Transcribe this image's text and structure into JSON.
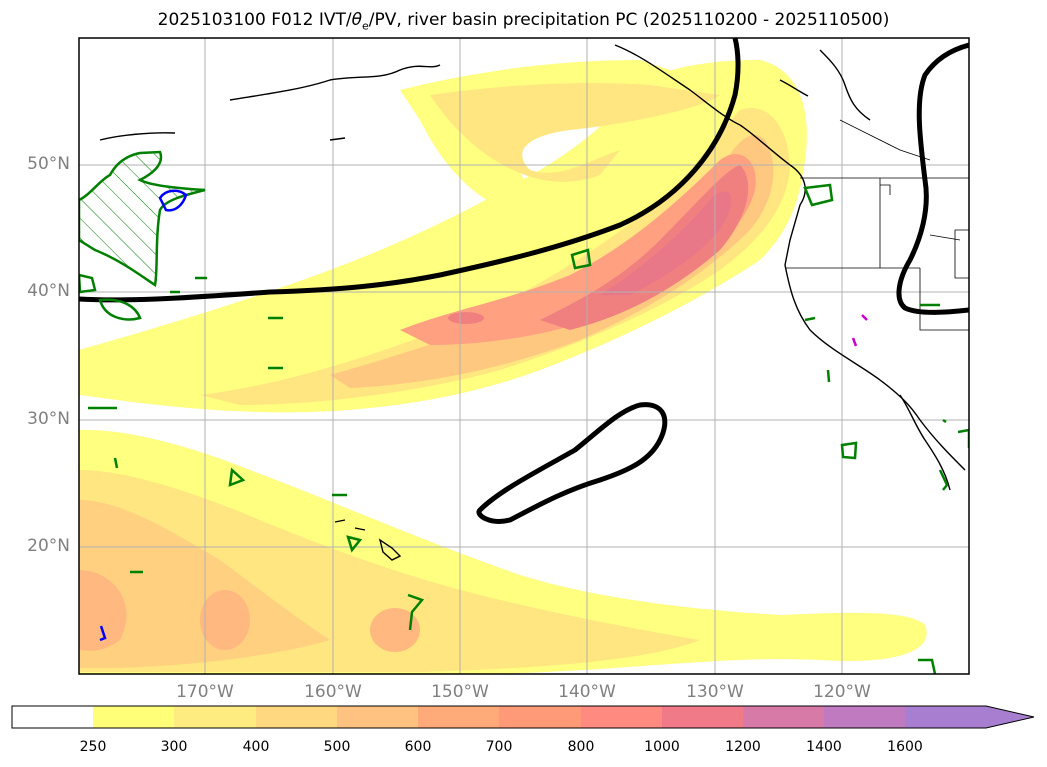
{
  "title": "2025103100 F012 IVT/θe/PV, river basin precipitation PC (2025110200 - 2025110500)",
  "title_parts": {
    "prefix": "2025103100 F012 IVT/",
    "theta": "θ",
    "theta_sub": "e",
    "suffix": "/PV, river basin precipitation PC (2025110200 - 2025110500)"
  },
  "latitude_labels": [
    "50°N",
    "40°N",
    "30°N",
    "20°N"
  ],
  "longitude_labels": [
    "170°W",
    "160°W",
    "150°W",
    "140°W",
    "130°W",
    "120°W"
  ],
  "colorbar": {
    "ticks": [
      "250",
      "300",
      "400",
      "500",
      "600",
      "700",
      "800",
      "1000",
      "1200",
      "1400",
      "1600"
    ],
    "colors": [
      "#ffffff",
      "#ffff78",
      "#ffec80",
      "#ffd880",
      "#ffc280",
      "#ffaa78",
      "#ff9a78",
      "#ff8a80",
      "#f07a88",
      "#d87aa8",
      "#c07ac0",
      "#a87ed0"
    ],
    "extend": "max"
  },
  "colors": {
    "ivt_contour": "#000000",
    "theta_e_contour": "#008000",
    "pv_contour_blue": "#0000ff",
    "pv_contour_magenta": "#cc00cc",
    "coastline": "#000000",
    "grid": "#b0b0b0"
  }
}
